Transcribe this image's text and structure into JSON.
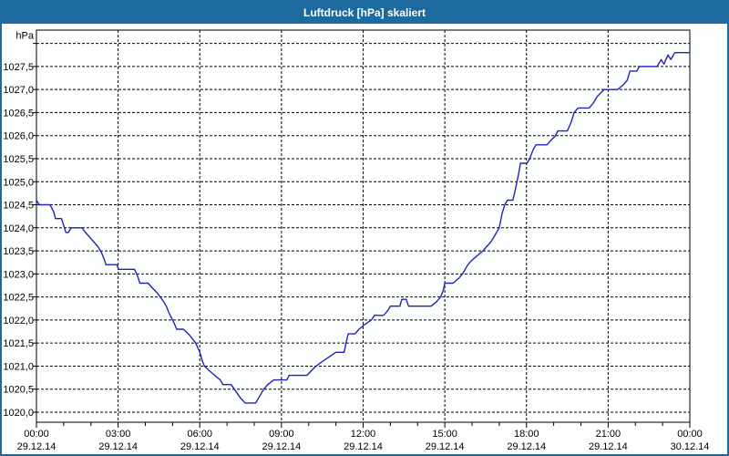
{
  "window": {
    "title": "Luftdruck [hPa] skaliert",
    "title_bar_color": "#1d6a9e",
    "border_color": "#1d6a9e"
  },
  "chart_data": {
    "type": "line",
    "title": "Luftdruck [hPa] skaliert",
    "xlabel": "",
    "ylabel": "hPa",
    "line_color": "#2222bb",
    "plot_background": "#fdfefe",
    "grid": "dashed black, horizontal every 0.5 hPa, vertical every 3 h",
    "legend": "none",
    "x_axis": {
      "min_hours": 0,
      "max_hours": 24,
      "major_tick_hours": 3,
      "minor_tick_hours": 1,
      "tick_labels": [
        {
          "time": "00:00",
          "date": "29.12.14"
        },
        {
          "time": "03:00",
          "date": "29.12.14"
        },
        {
          "time": "06:00",
          "date": "29.12.14"
        },
        {
          "time": "09:00",
          "date": "29.12.14"
        },
        {
          "time": "12:00",
          "date": "29.12.14"
        },
        {
          "time": "15:00",
          "date": "29.12.14"
        },
        {
          "time": "18:00",
          "date": "29.12.14"
        },
        {
          "time": "21:00",
          "date": "29.12.14"
        },
        {
          "time": "00:00",
          "date": "30.12.14"
        }
      ]
    },
    "y_axis": {
      "min": 1020.0,
      "max": 1028.0,
      "step": 0.5,
      "unit_label": "hPa",
      "top_gridline_unlabeled": 1028.0,
      "ticks": [
        {
          "v": 1020.0,
          "label": "1020,0"
        },
        {
          "v": 1020.5,
          "label": "1020,5"
        },
        {
          "v": 1021.0,
          "label": "1021,0"
        },
        {
          "v": 1021.5,
          "label": "1021,5"
        },
        {
          "v": 1022.0,
          "label": "1022,0"
        },
        {
          "v": 1022.5,
          "label": "1022,5"
        },
        {
          "v": 1023.0,
          "label": "1023,0"
        },
        {
          "v": 1023.5,
          "label": "1023,5"
        },
        {
          "v": 1024.0,
          "label": "1024,0"
        },
        {
          "v": 1024.5,
          "label": "1024,5"
        },
        {
          "v": 1025.0,
          "label": "1025,0"
        },
        {
          "v": 1025.5,
          "label": "1025,5"
        },
        {
          "v": 1026.0,
          "label": "1026,0"
        },
        {
          "v": 1026.5,
          "label": "1026,5"
        },
        {
          "v": 1027.0,
          "label": "1027,0"
        },
        {
          "v": 1027.5,
          "label": "1027,5"
        }
      ]
    },
    "series": [
      {
        "name": "Luftdruck",
        "unit": "hPa",
        "points_hours_hpa": [
          [
            0.0,
            1024.6
          ],
          [
            0.1,
            1024.5
          ],
          [
            0.5,
            1024.5
          ],
          [
            0.63,
            1024.35
          ],
          [
            0.7,
            1024.2
          ],
          [
            0.92,
            1024.2
          ],
          [
            1.0,
            1024.05
          ],
          [
            1.08,
            1023.9
          ],
          [
            1.17,
            1023.9
          ],
          [
            1.28,
            1024.0
          ],
          [
            1.67,
            1024.0
          ],
          [
            1.8,
            1023.9
          ],
          [
            1.95,
            1023.8
          ],
          [
            2.1,
            1023.7
          ],
          [
            2.25,
            1023.6
          ],
          [
            2.4,
            1023.45
          ],
          [
            2.5,
            1023.3
          ],
          [
            2.55,
            1023.2
          ],
          [
            2.95,
            1023.2
          ],
          [
            3.02,
            1023.1
          ],
          [
            3.6,
            1023.1
          ],
          [
            3.72,
            1022.95
          ],
          [
            3.8,
            1022.8
          ],
          [
            4.1,
            1022.8
          ],
          [
            4.25,
            1022.7
          ],
          [
            4.42,
            1022.6
          ],
          [
            4.55,
            1022.5
          ],
          [
            4.67,
            1022.4
          ],
          [
            4.77,
            1022.3
          ],
          [
            4.87,
            1022.15
          ],
          [
            5.0,
            1022.0
          ],
          [
            5.08,
            1021.9
          ],
          [
            5.15,
            1021.8
          ],
          [
            5.4,
            1021.8
          ],
          [
            5.58,
            1021.7
          ],
          [
            5.72,
            1021.6
          ],
          [
            5.85,
            1021.5
          ],
          [
            6.0,
            1021.3
          ],
          [
            6.1,
            1021.1
          ],
          [
            6.17,
            1021.0
          ],
          [
            6.35,
            1020.9
          ],
          [
            6.55,
            1020.8
          ],
          [
            6.75,
            1020.7
          ],
          [
            6.85,
            1020.6
          ],
          [
            7.15,
            1020.6
          ],
          [
            7.33,
            1020.45
          ],
          [
            7.5,
            1020.3
          ],
          [
            7.67,
            1020.2
          ],
          [
            8.05,
            1020.2
          ],
          [
            8.2,
            1020.35
          ],
          [
            8.35,
            1020.5
          ],
          [
            8.5,
            1020.6
          ],
          [
            8.72,
            1020.7
          ],
          [
            9.2,
            1020.7
          ],
          [
            9.28,
            1020.8
          ],
          [
            9.93,
            1020.8
          ],
          [
            10.1,
            1020.9
          ],
          [
            10.27,
            1021.0
          ],
          [
            10.5,
            1021.1
          ],
          [
            10.75,
            1021.2
          ],
          [
            11.0,
            1021.3
          ],
          [
            11.3,
            1021.3
          ],
          [
            11.37,
            1021.5
          ],
          [
            11.45,
            1021.7
          ],
          [
            11.7,
            1021.7
          ],
          [
            11.85,
            1021.8
          ],
          [
            12.05,
            1021.9
          ],
          [
            12.3,
            1022.0
          ],
          [
            12.42,
            1022.1
          ],
          [
            12.75,
            1022.1
          ],
          [
            12.9,
            1022.2
          ],
          [
            13.0,
            1022.3
          ],
          [
            13.35,
            1022.3
          ],
          [
            13.42,
            1022.45
          ],
          [
            13.58,
            1022.45
          ],
          [
            13.67,
            1022.3
          ],
          [
            14.5,
            1022.3
          ],
          [
            14.7,
            1022.4
          ],
          [
            14.85,
            1022.5
          ],
          [
            14.95,
            1022.65
          ],
          [
            15.0,
            1022.8
          ],
          [
            15.3,
            1022.8
          ],
          [
            15.5,
            1022.9
          ],
          [
            15.65,
            1023.0
          ],
          [
            15.75,
            1023.1
          ],
          [
            15.85,
            1023.2
          ],
          [
            16.0,
            1023.3
          ],
          [
            16.2,
            1023.4
          ],
          [
            16.4,
            1023.5
          ],
          [
            16.55,
            1023.6
          ],
          [
            16.7,
            1023.7
          ],
          [
            16.85,
            1023.85
          ],
          [
            17.0,
            1024.0
          ],
          [
            17.1,
            1024.3
          ],
          [
            17.2,
            1024.5
          ],
          [
            17.3,
            1024.6
          ],
          [
            17.5,
            1024.6
          ],
          [
            17.58,
            1024.8
          ],
          [
            17.65,
            1025.0
          ],
          [
            17.72,
            1025.2
          ],
          [
            17.78,
            1025.4
          ],
          [
            18.02,
            1025.4
          ],
          [
            18.12,
            1025.5
          ],
          [
            18.25,
            1025.7
          ],
          [
            18.35,
            1025.8
          ],
          [
            18.75,
            1025.8
          ],
          [
            18.9,
            1025.9
          ],
          [
            19.07,
            1026.0
          ],
          [
            19.15,
            1026.1
          ],
          [
            19.5,
            1026.1
          ],
          [
            19.65,
            1026.3
          ],
          [
            19.75,
            1026.5
          ],
          [
            19.9,
            1026.6
          ],
          [
            20.3,
            1026.6
          ],
          [
            20.45,
            1026.7
          ],
          [
            20.6,
            1026.85
          ],
          [
            20.85,
            1027.0
          ],
          [
            21.35,
            1027.0
          ],
          [
            21.55,
            1027.1
          ],
          [
            21.7,
            1027.2
          ],
          [
            21.8,
            1027.4
          ],
          [
            22.05,
            1027.4
          ],
          [
            22.15,
            1027.5
          ],
          [
            22.8,
            1027.5
          ],
          [
            22.95,
            1027.65
          ],
          [
            23.05,
            1027.55
          ],
          [
            23.2,
            1027.75
          ],
          [
            23.3,
            1027.65
          ],
          [
            23.45,
            1027.8
          ],
          [
            24.0,
            1027.8
          ]
        ]
      }
    ]
  }
}
